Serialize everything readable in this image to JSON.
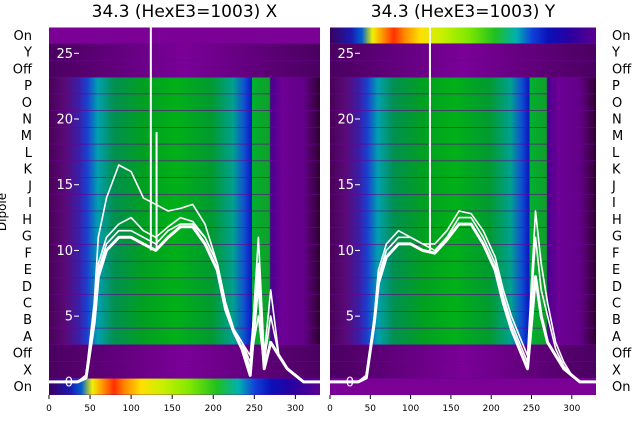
{
  "chart_data": {
    "type": "heatmap",
    "ylabel": "Dipole",
    "categories": [
      "On",
      "X",
      "Off",
      "A",
      "B",
      "C",
      "D",
      "E",
      "F",
      "G",
      "H",
      "I",
      "J",
      "K",
      "L",
      "M",
      "N",
      "O",
      "P",
      "Off",
      "Y",
      "On"
    ],
    "xlim": [
      0,
      330
    ],
    "x_ticks": [
      0,
      50,
      100,
      150,
      200,
      250,
      300
    ],
    "overlay_ylim": [
      -1,
      27
    ],
    "overlay_ticks": [
      0,
      5,
      10,
      15,
      20,
      25
    ],
    "panels": [
      {
        "title": "34.3 (HexE3=1003) X",
        "beam_x": [
          0,
          35,
          45,
          55,
          60,
          70,
          85,
          100,
          115,
          130,
          145,
          160,
          175,
          190,
          205,
          215,
          225,
          235,
          245,
          255,
          262,
          270,
          280,
          290,
          300,
          310,
          320,
          330
        ],
        "series": [
          {
            "name": "s1",
            "values": [
              0,
              0,
              0.5,
              6,
              11,
              14,
              16.5,
              16,
              14,
              13.5,
              13,
              13.2,
              13.5,
              12,
              9,
              6,
              4,
              3,
              1.5,
              5,
              1,
              3,
              2,
              1,
              0.5,
              0,
              0,
              0
            ]
          },
          {
            "name": "s2",
            "values": [
              0,
              0,
              0.5,
              5,
              9,
              11,
              12,
              12.5,
              11.5,
              11,
              11.8,
              12.5,
              12.2,
              11,
              9,
              6,
              4,
              3,
              2,
              9,
              1.5,
              5,
              2,
              1,
              0.5,
              0,
              0,
              0
            ]
          },
          {
            "name": "s3",
            "values": [
              0,
              0,
              0.5,
              5,
              8.5,
              10.5,
              11.5,
              11.5,
              11,
              10.5,
              11.5,
              12,
              12,
              11,
              9,
              6,
              4,
              3,
              1,
              11,
              2,
              7,
              2,
              1,
              0.5,
              0,
              0,
              0
            ]
          },
          {
            "name": "s4",
            "values": [
              0,
              0,
              0.3,
              4.5,
              8,
              10,
              11,
              11,
              10.5,
              10,
              11,
              11.8,
              11.8,
              10.5,
              8.5,
              5.5,
              3.8,
              2.5,
              0.5,
              8,
              1,
              3,
              2,
              1,
              0.5,
              0,
              0,
              0
            ]
          }
        ],
        "spikes": [
          {
            "x": 124,
            "peak": 28
          },
          {
            "x": 131,
            "peak": 19
          }
        ],
        "stripe_x": [
          240,
          270
        ]
      },
      {
        "title": "34.3 (HexE3=1003) Y",
        "beam_x": [
          0,
          35,
          45,
          55,
          60,
          70,
          85,
          100,
          115,
          130,
          145,
          160,
          175,
          190,
          205,
          215,
          225,
          235,
          245,
          255,
          262,
          270,
          280,
          290,
          300,
          310,
          320,
          330
        ],
        "series": [
          {
            "name": "s1",
            "values": [
              0,
              0,
              0.5,
              5,
              8.5,
              10.5,
              11.5,
              11,
              10.5,
              10.5,
              11.5,
              13,
              12.8,
              11.5,
              9.5,
              7,
              5,
              3.5,
              2,
              13,
              9,
              6,
              3,
              1.5,
              0.5,
              0,
              0,
              0
            ]
          },
          {
            "name": "s2",
            "values": [
              0,
              0,
              0.5,
              4.8,
              8,
              10,
              11,
              11,
              10.5,
              10,
              11,
              12.5,
              12.5,
              11,
              9,
              6.5,
              4.5,
              3,
              1.5,
              11,
              7,
              5,
              2.5,
              1.2,
              0.5,
              0,
              0,
              0
            ]
          },
          {
            "name": "s3",
            "values": [
              0,
              0,
              0.3,
              4.5,
              7.5,
              9.5,
              10.5,
              10.5,
              10,
              9.8,
              10.8,
              12,
              12,
              10.5,
              8.5,
              6,
              4,
              2.5,
              1,
              8,
              5,
              3,
              2,
              1,
              0.5,
              0,
              0,
              0
            ]
          }
        ],
        "spikes": [
          {
            "x": 124,
            "peak": 27
          }
        ],
        "stripe_x": [
          243,
          270
        ]
      }
    ]
  }
}
